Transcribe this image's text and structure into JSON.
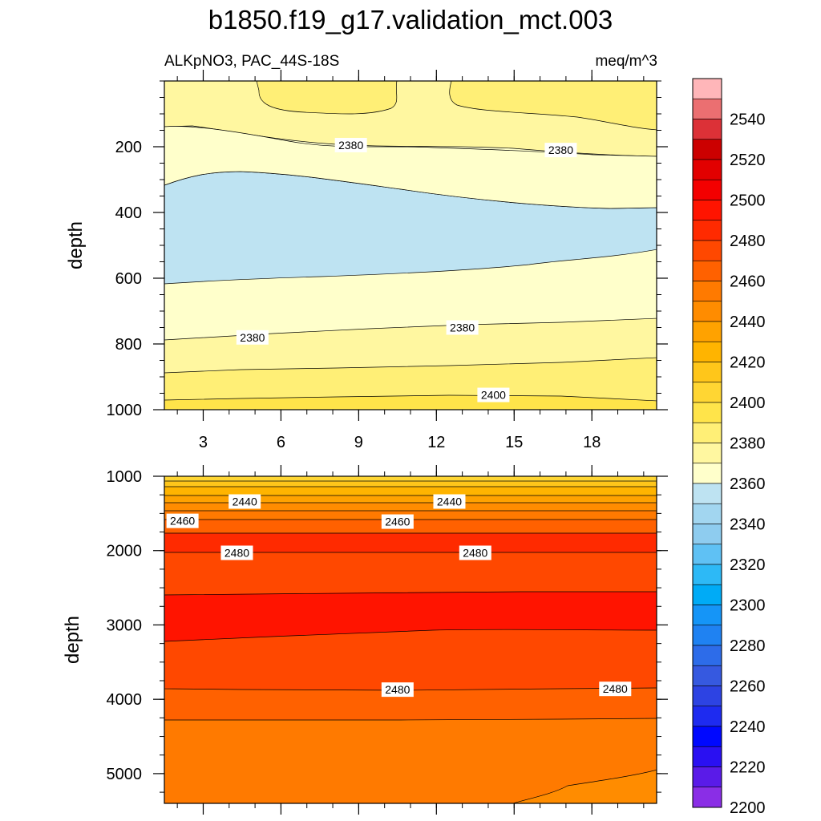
{
  "chart_data": {
    "type": "contour",
    "title": "b1850.f19_g17.validation_mct.003",
    "left_subtitle": "ALKpNO3, PAC_44S-18S",
    "right_subtitle": "meq/m^3",
    "ylabel": "depth",
    "xrange": [
      1.5,
      20.5
    ],
    "xticks": [
      "3",
      "6",
      "9",
      "12",
      "15",
      "18"
    ],
    "xtick_values": [
      3,
      6,
      9,
      12,
      15,
      18
    ],
    "panels": [
      {
        "name": "upper",
        "ylim": [
          0,
          1000
        ],
        "yticks": [
          "200",
          "400",
          "600",
          "800",
          "1000"
        ],
        "ytick_values": [
          200,
          400,
          600,
          800,
          1000
        ],
        "levels": [
          {
            "label": "2380",
            "x": 8.7,
            "depth": 195
          },
          {
            "label": "2380",
            "x": 16.8,
            "depth": 210
          },
          {
            "label": "2380",
            "x": 4.9,
            "depth": 780
          },
          {
            "label": "2380",
            "x": 13.0,
            "depth": 750
          },
          {
            "label": "2400",
            "x": 14.2,
            "depth": 955
          }
        ]
      },
      {
        "name": "lower",
        "ylim": [
          1000,
          5400
        ],
        "yticks": [
          "1000",
          "2000",
          "3000",
          "4000",
          "5000"
        ],
        "ytick_values": [
          1000,
          2000,
          3000,
          4000,
          5000
        ],
        "levels": [
          {
            "label": "2440",
            "x": 4.6,
            "depth": 1340
          },
          {
            "label": "2440",
            "x": 12.5,
            "depth": 1340
          },
          {
            "label": "2460",
            "x": 2.2,
            "depth": 1600
          },
          {
            "label": "2460",
            "x": 10.5,
            "depth": 1610
          },
          {
            "label": "2480",
            "x": 4.3,
            "depth": 2030
          },
          {
            "label": "2480",
            "x": 13.5,
            "depth": 2030
          },
          {
            "label": "2480",
            "x": 10.5,
            "depth": 3870
          },
          {
            "label": "2480",
            "x": 18.9,
            "depth": 3860
          }
        ]
      }
    ],
    "colorbar": {
      "labels": [
        "2540",
        "2520",
        "2500",
        "2480",
        "2460",
        "2440",
        "2420",
        "2400",
        "2380",
        "2360",
        "2340",
        "2320",
        "2300",
        "2280",
        "2260",
        "2240",
        "2220",
        "2200"
      ],
      "colors": [
        "#FFB6B9",
        "#EB6F71",
        "#DC3137",
        "#CC0000",
        "#E20000",
        "#F30000",
        "#FF1400",
        "#FF2A00",
        "#FF4800",
        "#FF6100",
        "#FF7A00",
        "#FF8C00",
        "#FFA200",
        "#FFB400",
        "#FFC61A",
        "#FFD633",
        "#FFE44A",
        "#FFEF76",
        "#FFF7A0",
        "#FFFFCB",
        "#BEE3F2",
        "#A2D6F0",
        "#8ECCEF",
        "#5FC1F4",
        "#2DB9F6",
        "#00ABF6",
        "#1595F7",
        "#1F82F2",
        "#2D6CE9",
        "#3659E0",
        "#2D43E3",
        "#1E2BF0",
        "#0008FF",
        "#2A10F2",
        "#5A1BE8",
        "#8A2EE6"
      ]
    }
  }
}
